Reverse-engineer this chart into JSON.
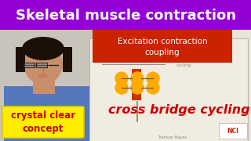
{
  "bg_color": "#d0cfc8",
  "title_text": "Skeletal muscle contraction",
  "title_bg": "#9400d3",
  "title_fg": "#ffffff",
  "subtitle_text": "Excitation contraction\ncoupling",
  "subtitle_bg": "#cc2200",
  "subtitle_fg": "#ffffff",
  "main_text": "cross bridge cycling",
  "main_text_color": "#cc0000",
  "badge_text": "crystal clear\nconcept",
  "badge_bg": "#ffee00",
  "badge_fg": "#cc0000",
  "wall_color": "#e8e4dc",
  "skin_color": "#c8906a",
  "hair_color": "#1a1008",
  "shirt_color": "#5577bb",
  "notebook_bg": "#f0ece0",
  "nci_bg": "#ffffff",
  "nci_color": "#cc2200",
  "diagram_orange": "#ffaa00",
  "diagram_red": "#cc3300",
  "diagram_green": "#44aa44"
}
